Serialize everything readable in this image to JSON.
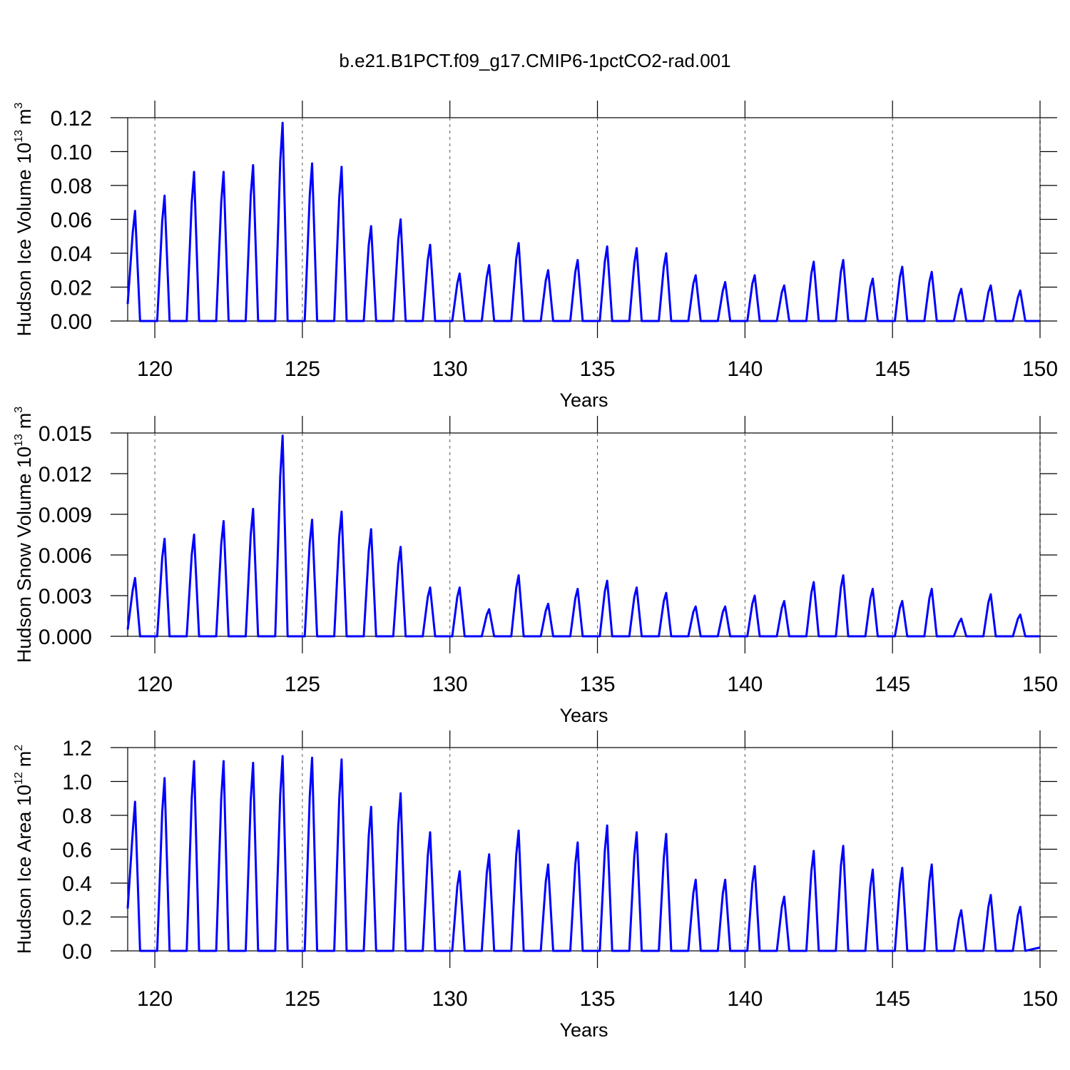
{
  "chart_data": [
    {
      "type": "line",
      "title": "b.e21.B1PCT.f09_g17.CMIP6-1pctCO2-rad.001",
      "x_label": "Years",
      "y_label": {
        "text": "Hudson Ice Volume 10",
        "exp": "13",
        "unit": "m",
        "unit_exp": "3"
      },
      "color": "#0000ff",
      "xgrid": true,
      "xlim": [
        119.08,
        150
      ],
      "xticks": [
        120,
        125,
        130,
        135,
        140,
        145,
        150
      ],
      "ylim": [
        0,
        0.12
      ],
      "yticks": [
        {
          "value": 0,
          "label": "0.00"
        },
        {
          "value": 0.02,
          "label": "0.02"
        },
        {
          "value": 0.04,
          "label": "0.04"
        },
        {
          "value": 0.06,
          "label": "0.06"
        },
        {
          "value": 0.08,
          "label": "0.08"
        },
        {
          "value": 0.1,
          "label": "0.10"
        },
        {
          "value": 0.12,
          "label": "0.12"
        }
      ],
      "x": [
        119.08,
        119.25,
        119.33,
        119.5,
        120.08,
        120.25,
        120.33,
        120.5,
        121.08,
        121.25,
        121.33,
        121.5,
        122.08,
        122.25,
        122.33,
        122.5,
        123.08,
        123.25,
        123.33,
        123.5,
        124.08,
        124.25,
        124.33,
        124.5,
        125.08,
        125.25,
        125.33,
        125.5,
        126.08,
        126.25,
        126.33,
        126.5,
        127.08,
        127.25,
        127.33,
        127.5,
        128.08,
        128.25,
        128.33,
        128.5,
        129.08,
        129.25,
        129.33,
        129.5,
        130.08,
        130.25,
        130.33,
        130.5,
        131.08,
        131.25,
        131.33,
        131.5,
        132.08,
        132.25,
        132.33,
        132.5,
        133.08,
        133.25,
        133.33,
        133.5,
        134.08,
        134.25,
        134.33,
        134.5,
        135.08,
        135.25,
        135.33,
        135.5,
        136.08,
        136.25,
        136.33,
        136.5,
        137.08,
        137.25,
        137.33,
        137.5,
        138.08,
        138.25,
        138.33,
        138.5,
        139.08,
        139.25,
        139.33,
        139.5,
        140.08,
        140.25,
        140.33,
        140.5,
        141.08,
        141.25,
        141.33,
        141.5,
        142.08,
        142.25,
        142.33,
        142.5,
        143.08,
        143.25,
        143.33,
        143.5,
        144.08,
        144.25,
        144.33,
        144.5,
        145.08,
        145.25,
        145.33,
        145.5,
        146.08,
        146.25,
        146.33,
        146.5,
        147.08,
        147.25,
        147.33,
        147.5,
        148.08,
        148.25,
        148.33,
        148.5,
        149.08,
        149.25,
        149.33,
        149.5,
        150
      ],
      "values": [
        0.01,
        0.052,
        0.065,
        0,
        0,
        0.059,
        0.074,
        0,
        0,
        0.07,
        0.088,
        0,
        0,
        0.07,
        0.088,
        0,
        0,
        0.074,
        0.092,
        0,
        0,
        0.094,
        0.117,
        0,
        0,
        0.074,
        0.093,
        0,
        0,
        0.073,
        0.091,
        0,
        0,
        0.045,
        0.056,
        0,
        0,
        0.048,
        0.06,
        0,
        0,
        0.036,
        0.045,
        0,
        0,
        0.022,
        0.028,
        0,
        0,
        0.026,
        0.033,
        0,
        0,
        0.037,
        0.046,
        0,
        0,
        0.024,
        0.03,
        0,
        0,
        0.029,
        0.036,
        0,
        0,
        0.035,
        0.044,
        0,
        0,
        0.034,
        0.043,
        0,
        0,
        0.032,
        0.04,
        0,
        0,
        0.022,
        0.027,
        0,
        0,
        0.018,
        0.023,
        0,
        0,
        0.022,
        0.027,
        0,
        0,
        0.017,
        0.021,
        0,
        0,
        0.028,
        0.035,
        0,
        0,
        0.029,
        0.036,
        0,
        0,
        0.02,
        0.025,
        0,
        0,
        0.026,
        0.032,
        0,
        0,
        0.023,
        0.029,
        0,
        0,
        0.015,
        0.019,
        0,
        0,
        0.017,
        0.021,
        0,
        0,
        0.014,
        0.018,
        0,
        0
      ]
    },
    {
      "type": "line",
      "x_label": "Years",
      "y_label": {
        "text": "Hudson Snow Volume 10",
        "exp": "13",
        "unit": "m",
        "unit_exp": "3"
      },
      "color": "#0000ff",
      "xgrid": true,
      "xlim": [
        119.08,
        150
      ],
      "xticks": [
        120,
        125,
        130,
        135,
        140,
        145,
        150
      ],
      "ylim": [
        0,
        0.015
      ],
      "yticks": [
        {
          "value": 0,
          "label": "0.000"
        },
        {
          "value": 0.003,
          "label": "0.003"
        },
        {
          "value": 0.006,
          "label": "0.006"
        },
        {
          "value": 0.009,
          "label": "0.009"
        },
        {
          "value": 0.012,
          "label": "0.012"
        },
        0.015
      ],
      "x": [
        119.08,
        119.25,
        119.33,
        119.5,
        120.08,
        120.25,
        120.33,
        120.5,
        121.08,
        121.25,
        121.33,
        121.5,
        122.08,
        122.25,
        122.33,
        122.5,
        123.08,
        123.25,
        123.33,
        123.5,
        124.08,
        124.25,
        124.33,
        124.5,
        125.08,
        125.25,
        125.33,
        125.5,
        126.08,
        126.25,
        126.33,
        126.5,
        127.08,
        127.25,
        127.33,
        127.5,
        128.08,
        128.25,
        128.33,
        128.5,
        129.08,
        129.25,
        129.33,
        129.5,
        130.08,
        130.25,
        130.33,
        130.5,
        131.08,
        131.25,
        131.33,
        131.5,
        132.08,
        132.25,
        132.33,
        132.5,
        133.08,
        133.25,
        133.33,
        133.5,
        134.08,
        134.25,
        134.33,
        134.5,
        135.08,
        135.25,
        135.33,
        135.5,
        136.08,
        136.25,
        136.33,
        136.5,
        137.08,
        137.25,
        137.33,
        137.5,
        138.08,
        138.25,
        138.33,
        138.5,
        139.08,
        139.25,
        139.33,
        139.5,
        140.08,
        140.25,
        140.33,
        140.5,
        141.08,
        141.25,
        141.33,
        141.5,
        142.08,
        142.25,
        142.33,
        142.5,
        143.08,
        143.25,
        143.33,
        143.5,
        144.08,
        144.25,
        144.33,
        144.5,
        145.08,
        145.25,
        145.33,
        145.5,
        146.08,
        146.25,
        146.33,
        146.5,
        147.08,
        147.25,
        147.33,
        147.5,
        148.08,
        148.25,
        148.33,
        148.5,
        149.08,
        149.25,
        149.33,
        149.5,
        150
      ],
      "values": [
        0.0005,
        0.0034,
        0.0043,
        0,
        0,
        0.0058,
        0.0072,
        0,
        0,
        0.006,
        0.0075,
        0,
        0,
        0.0068,
        0.0085,
        0,
        0,
        0.0075,
        0.0094,
        0,
        0,
        0.0118,
        0.0148,
        0,
        0,
        0.0069,
        0.0086,
        0,
        0,
        0.0074,
        0.0092,
        0,
        0,
        0.0063,
        0.0079,
        0,
        0,
        0.0053,
        0.0066,
        0,
        0,
        0.0029,
        0.0036,
        0,
        0,
        0.0029,
        0.0036,
        0,
        0,
        0.0016,
        0.002,
        0,
        0,
        0.0036,
        0.0045,
        0,
        0,
        0.0019,
        0.0024,
        0,
        0,
        0.0028,
        0.0035,
        0,
        0,
        0.0033,
        0.0041,
        0,
        0,
        0.0029,
        0.0036,
        0,
        0,
        0.0026,
        0.0032,
        0,
        0,
        0.0018,
        0.0022,
        0,
        0,
        0.0018,
        0.0022,
        0,
        0,
        0.0024,
        0.003,
        0,
        0,
        0.0021,
        0.0026,
        0,
        0,
        0.0032,
        0.004,
        0,
        0,
        0.0036,
        0.0045,
        0,
        0,
        0.0028,
        0.0035,
        0,
        0,
        0.0021,
        0.0026,
        0,
        0,
        0.0028,
        0.0035,
        0,
        0,
        0.001,
        0.0013,
        0,
        0,
        0.0025,
        0.0031,
        0,
        0,
        0.0013,
        0.0016,
        0,
        0
      ]
    },
    {
      "type": "line",
      "x_label": "Years",
      "y_label": {
        "text": "Hudson Ice Area 10",
        "exp": "12",
        "unit": "m",
        "unit_exp": "2"
      },
      "color": "#0000ff",
      "xgrid": true,
      "xlim": [
        119.08,
        150
      ],
      "xticks": [
        120,
        125,
        130,
        135,
        140,
        145,
        150
      ],
      "ylim": [
        0,
        1.2
      ],
      "yticks": [
        {
          "value": 0,
          "label": "0.0"
        },
        0.2,
        0.4,
        0.6,
        0.8,
        {
          "value": 1,
          "label": "1.0"
        },
        1.2
      ],
      "x": [
        119.08,
        119.25,
        119.33,
        119.5,
        120.08,
        120.25,
        120.33,
        120.5,
        121.08,
        121.25,
        121.33,
        121.5,
        122.08,
        122.25,
        122.33,
        122.5,
        123.08,
        123.25,
        123.33,
        123.5,
        124.08,
        124.25,
        124.33,
        124.5,
        125.08,
        125.25,
        125.33,
        125.5,
        126.08,
        126.25,
        126.33,
        126.5,
        127.08,
        127.25,
        127.33,
        127.5,
        128.08,
        128.25,
        128.33,
        128.5,
        129.08,
        129.25,
        129.33,
        129.5,
        130.08,
        130.25,
        130.33,
        130.5,
        131.08,
        131.25,
        131.33,
        131.5,
        132.08,
        132.25,
        132.33,
        132.5,
        133.08,
        133.25,
        133.33,
        133.5,
        134.08,
        134.25,
        134.33,
        134.5,
        135.08,
        135.25,
        135.33,
        135.5,
        136.08,
        136.25,
        136.33,
        136.5,
        137.08,
        137.25,
        137.33,
        137.5,
        138.08,
        138.25,
        138.33,
        138.5,
        139.08,
        139.25,
        139.33,
        139.5,
        140.08,
        140.25,
        140.33,
        140.5,
        141.08,
        141.25,
        141.33,
        141.5,
        142.08,
        142.25,
        142.33,
        142.5,
        143.08,
        143.25,
        143.33,
        143.5,
        144.08,
        144.25,
        144.33,
        144.5,
        145.08,
        145.25,
        145.33,
        145.5,
        146.08,
        146.25,
        146.33,
        146.5,
        147.08,
        147.25,
        147.33,
        147.5,
        148.08,
        148.25,
        148.33,
        148.5,
        149.08,
        149.25,
        149.33,
        149.5,
        150
      ],
      "values": [
        0.25,
        0.7,
        0.88,
        0,
        0,
        0.82,
        1.02,
        0,
        0,
        0.9,
        1.12,
        0,
        0,
        0.9,
        1.12,
        0,
        0,
        0.89,
        1.11,
        0,
        0,
        0.92,
        1.15,
        0,
        0,
        0.91,
        1.14,
        0,
        0,
        0.9,
        1.13,
        0,
        0,
        0.68,
        0.85,
        0,
        0,
        0.74,
        0.93,
        0,
        0,
        0.56,
        0.7,
        0,
        0,
        0.38,
        0.47,
        0,
        0,
        0.46,
        0.57,
        0,
        0,
        0.57,
        0.71,
        0,
        0,
        0.41,
        0.51,
        0,
        0,
        0.51,
        0.64,
        0,
        0,
        0.59,
        0.74,
        0,
        0,
        0.56,
        0.7,
        0,
        0,
        0.55,
        0.69,
        0,
        0,
        0.34,
        0.42,
        0,
        0,
        0.34,
        0.42,
        0,
        0,
        0.4,
        0.5,
        0,
        0,
        0.26,
        0.32,
        0,
        0,
        0.47,
        0.59,
        0,
        0,
        0.5,
        0.62,
        0,
        0,
        0.38,
        0.48,
        0,
        0,
        0.39,
        0.49,
        0,
        0,
        0.41,
        0.51,
        0,
        0,
        0.19,
        0.24,
        0,
        0,
        0.26,
        0.33,
        0,
        0,
        0.21,
        0.26,
        0,
        0.02
      ]
    }
  ]
}
